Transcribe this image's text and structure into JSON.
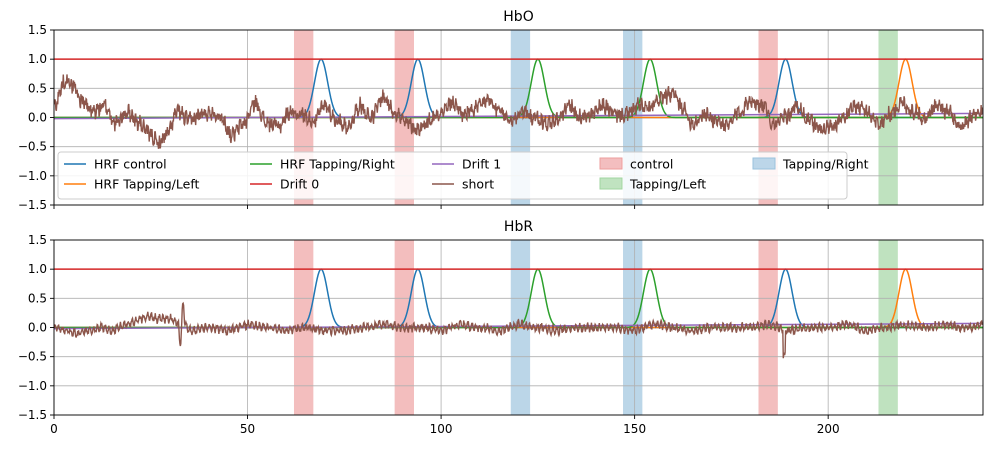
{
  "chart_data": [
    {
      "type": "line",
      "title": "HbO",
      "xlim": [
        0,
        240
      ],
      "ylim": [
        -1.5,
        1.5
      ],
      "xticks": [
        "0",
        "50",
        "100",
        "150",
        "200"
      ],
      "yticks": [
        "1.5",
        "1.0",
        "0.5",
        "0.0",
        "−0.5",
        "−1.0",
        "−1.5"
      ],
      "grid": true,
      "show_xticklabels": false,
      "legend": {
        "placement": "lower-left",
        "columns": 5,
        "entries": [
          {
            "label": "HRF control",
            "color": "#1f77b4",
            "kind": "line"
          },
          {
            "label": "HRF Tapping/Left",
            "color": "#ff7f0e",
            "kind": "line"
          },
          {
            "label": "HRF Tapping/Right",
            "color": "#2ca02c",
            "kind": "line"
          },
          {
            "label": "Drift 0",
            "color": "#d62728",
            "kind": "line"
          },
          {
            "label": "Drift 1",
            "color": "#9467bd",
            "kind": "line"
          },
          {
            "label": "short",
            "color": "#8c564b",
            "kind": "line"
          },
          {
            "label": "control",
            "color": "#d62728",
            "kind": "patch"
          },
          {
            "label": "Tapping/Left",
            "color": "#2ca02c",
            "kind": "patch"
          },
          {
            "label": "Tapping/Right",
            "color": "#1f77b4",
            "kind": "patch"
          }
        ]
      }
    },
    {
      "type": "line",
      "title": "HbR",
      "xlim": [
        0,
        240
      ],
      "ylim": [
        -1.5,
        1.5
      ],
      "xticks": [
        "0",
        "50",
        "100",
        "150",
        "200"
      ],
      "yticks": [
        "1.5",
        "1.0",
        "0.5",
        "0.0",
        "−0.5",
        "−1.0",
        "−1.5"
      ],
      "grid": true,
      "show_xticklabels": true
    }
  ],
  "events": {
    "control": {
      "color": "#d62728",
      "spans": [
        [
          62,
          67
        ],
        [
          88,
          93
        ],
        [
          182,
          187
        ]
      ]
    },
    "tapping_left": {
      "color": "#2ca02c",
      "spans": [
        [
          213,
          218
        ]
      ]
    },
    "tapping_right": {
      "color": "#1f77b4",
      "spans": [
        [
          118,
          123
        ],
        [
          147,
          152
        ]
      ]
    }
  },
  "hrf_peaks": {
    "control": {
      "color": "#1f77b4",
      "peaks": [
        69,
        94,
        189
      ]
    },
    "tapping_left": {
      "color": "#ff7f0e",
      "peaks": [
        220
      ]
    },
    "tapping_right": {
      "color": "#2ca02c",
      "peaks": [
        125,
        154
      ]
    }
  },
  "drift0": {
    "color": "#d62728",
    "value": 1.0
  },
  "drift1": {
    "color": "#9467bd",
    "from": -0.02,
    "to": 0.07
  },
  "short": {
    "color": "#8c564b",
    "hbo_slow_knots": [
      [
        0,
        0.2
      ],
      [
        3,
        0.65
      ],
      [
        5,
        0.55
      ],
      [
        7,
        0.3
      ],
      [
        10,
        0.1
      ],
      [
        13,
        0.2
      ],
      [
        16,
        -0.1
      ],
      [
        19,
        0.1
      ],
      [
        22,
        -0.1
      ],
      [
        25,
        -0.3
      ],
      [
        27,
        -0.45
      ],
      [
        29,
        -0.3
      ],
      [
        32,
        0.1
      ],
      [
        35,
        -0.05
      ],
      [
        38,
        0.05
      ],
      [
        41,
        0.1
      ],
      [
        43,
        0.0
      ],
      [
        46,
        -0.3
      ],
      [
        49,
        -0.1
      ],
      [
        52,
        0.25
      ],
      [
        55,
        -0.1
      ],
      [
        58,
        -0.15
      ],
      [
        61,
        0.1
      ],
      [
        64,
        0.05
      ],
      [
        67,
        -0.05
      ],
      [
        70,
        0.2
      ],
      [
        73,
        -0.05
      ],
      [
        76,
        -0.15
      ],
      [
        79,
        0.2
      ],
      [
        82,
        0.0
      ],
      [
        85,
        0.35
      ],
      [
        88,
        0.1
      ],
      [
        91,
        -0.1
      ],
      [
        94,
        -0.2
      ],
      [
        97,
        -0.05
      ],
      [
        100,
        0.1
      ],
      [
        103,
        0.25
      ],
      [
        106,
        0.05
      ],
      [
        109,
        0.15
      ],
      [
        112,
        0.3
      ],
      [
        115,
        0.1
      ],
      [
        118,
        -0.05
      ],
      [
        121,
        0.1
      ],
      [
        124,
        0.0
      ],
      [
        127,
        -0.1
      ],
      [
        130,
        -0.05
      ],
      [
        133,
        0.2
      ],
      [
        136,
        0.0
      ],
      [
        139,
        0.05
      ],
      [
        142,
        0.2
      ],
      [
        145,
        0.05
      ],
      [
        148,
        0.05
      ],
      [
        151,
        0.2
      ],
      [
        154,
        0.15
      ],
      [
        157,
        0.35
      ],
      [
        160,
        0.4
      ],
      [
        162,
        0.2
      ],
      [
        165,
        -0.1
      ],
      [
        168,
        0.05
      ],
      [
        171,
        -0.05
      ],
      [
        174,
        -0.15
      ],
      [
        177,
        0.1
      ],
      [
        180,
        0.3
      ],
      [
        183,
        0.2
      ],
      [
        186,
        -0.1
      ],
      [
        189,
        0.0
      ],
      [
        192,
        0.2
      ],
      [
        195,
        -0.05
      ],
      [
        198,
        -0.2
      ],
      [
        201,
        -0.15
      ],
      [
        204,
        0.0
      ],
      [
        207,
        0.2
      ],
      [
        210,
        0.1
      ],
      [
        213,
        -0.1
      ],
      [
        216,
        0.05
      ],
      [
        219,
        0.25
      ],
      [
        222,
        0.1
      ],
      [
        225,
        0.0
      ],
      [
        228,
        0.2
      ],
      [
        231,
        0.1
      ],
      [
        234,
        -0.2
      ],
      [
        237,
        0.0
      ],
      [
        240,
        0.1
      ]
    ],
    "hbr_slow_knots": [
      [
        0,
        0.0
      ],
      [
        3,
        -0.05
      ],
      [
        6,
        -0.1
      ],
      [
        9,
        -0.05
      ],
      [
        12,
        0.0
      ],
      [
        15,
        -0.05
      ],
      [
        18,
        0.05
      ],
      [
        21,
        0.1
      ],
      [
        24,
        0.2
      ],
      [
        27,
        0.15
      ],
      [
        30,
        0.15
      ],
      [
        33,
        0.05
      ],
      [
        36,
        -0.05
      ],
      [
        40,
        0.0
      ],
      [
        45,
        -0.05
      ],
      [
        50,
        0.05
      ],
      [
        55,
        0.0
      ],
      [
        60,
        -0.05
      ],
      [
        65,
        0.0
      ],
      [
        70,
        -0.05
      ],
      [
        75,
        -0.05
      ],
      [
        80,
        0.0
      ],
      [
        85,
        0.05
      ],
      [
        90,
        0.0
      ],
      [
        95,
        0.0
      ],
      [
        100,
        -0.05
      ],
      [
        105,
        0.05
      ],
      [
        110,
        0.0
      ],
      [
        115,
        -0.05
      ],
      [
        120,
        0.05
      ],
      [
        125,
        0.0
      ],
      [
        130,
        -0.05
      ],
      [
        135,
        0.0
      ],
      [
        140,
        0.0
      ],
      [
        145,
        0.0
      ],
      [
        150,
        -0.05
      ],
      [
        155,
        0.05
      ],
      [
        160,
        0.0
      ],
      [
        165,
        -0.05
      ],
      [
        170,
        0.0
      ],
      [
        175,
        0.0
      ],
      [
        180,
        0.0
      ],
      [
        185,
        0.05
      ],
      [
        190,
        -0.05
      ],
      [
        195,
        0.0
      ],
      [
        200,
        0.0
      ],
      [
        205,
        0.05
      ],
      [
        210,
        -0.05
      ],
      [
        215,
        0.0
      ],
      [
        220,
        0.05
      ],
      [
        225,
        0.0
      ],
      [
        230,
        0.05
      ],
      [
        235,
        0.0
      ],
      [
        240,
        0.05
      ]
    ]
  }
}
